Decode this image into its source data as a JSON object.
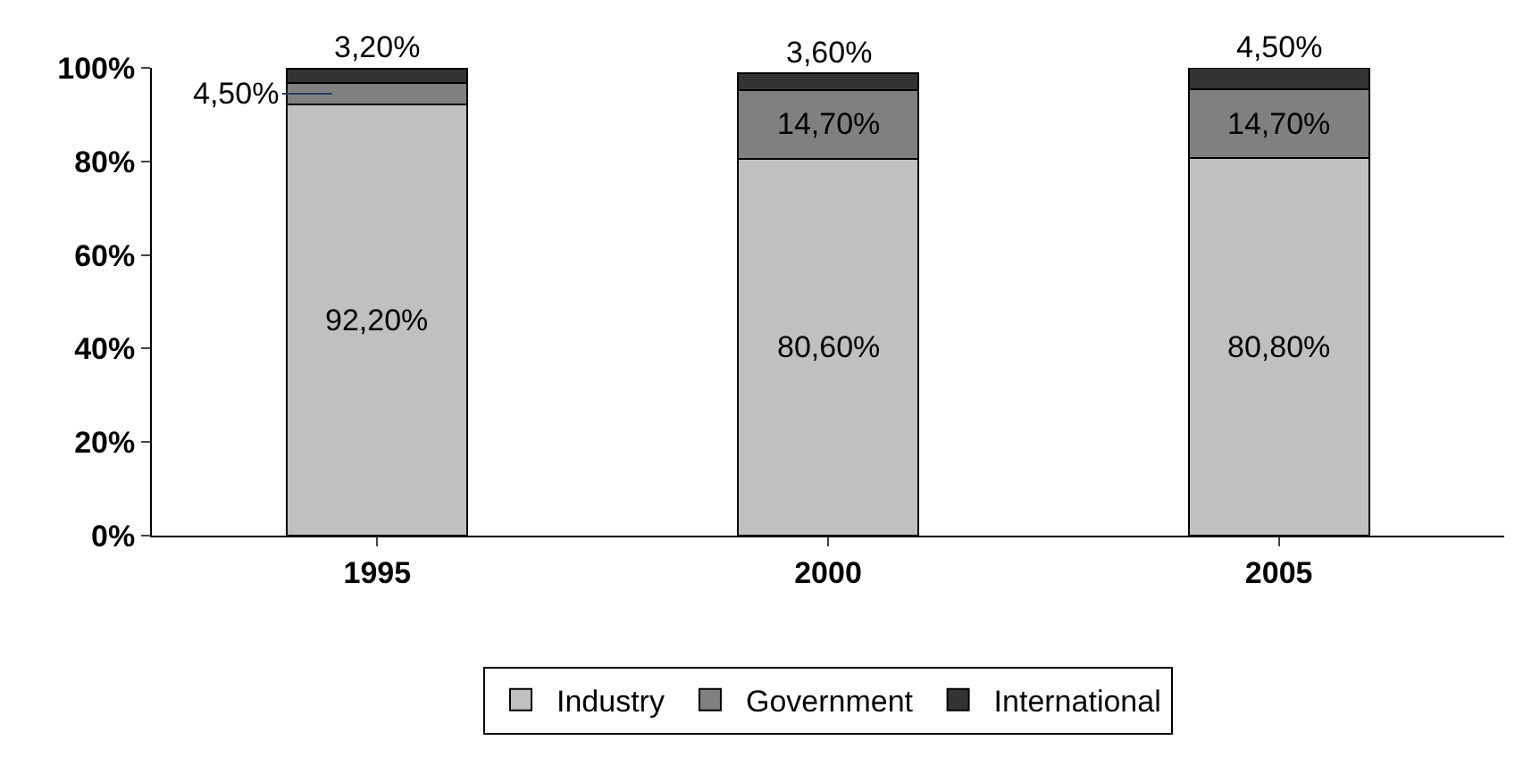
{
  "chart_data": {
    "type": "bar",
    "stacked": true,
    "categories": [
      "1995",
      "2000",
      "2005"
    ],
    "series": [
      {
        "name": "Industry",
        "color": "#c0c0c0",
        "values": [
          92.2,
          80.6,
          80.8
        ],
        "value_labels": [
          "92,20%",
          "80,60%",
          "80,80%"
        ]
      },
      {
        "name": "Government",
        "color": "#808080",
        "values": [
          4.5,
          14.7,
          14.7
        ],
        "value_labels": [
          "4,50%",
          "14,70%",
          "14,70%"
        ]
      },
      {
        "name": "International",
        "color": "#333333",
        "values": [
          3.2,
          3.6,
          4.5
        ],
        "value_labels": [
          "3,20%",
          "3,60%",
          "4,50%"
        ]
      }
    ],
    "ylim": [
      0,
      100
    ],
    "yticks": [
      {
        "value": 0,
        "label": "0%"
      },
      {
        "value": 20,
        "label": "20%"
      },
      {
        "value": 40,
        "label": "40%"
      },
      {
        "value": 60,
        "label": "60%"
      },
      {
        "value": 80,
        "label": "80%"
      },
      {
        "value": 100,
        "label": "100%"
      }
    ],
    "grid": false,
    "legend": "bottom"
  }
}
